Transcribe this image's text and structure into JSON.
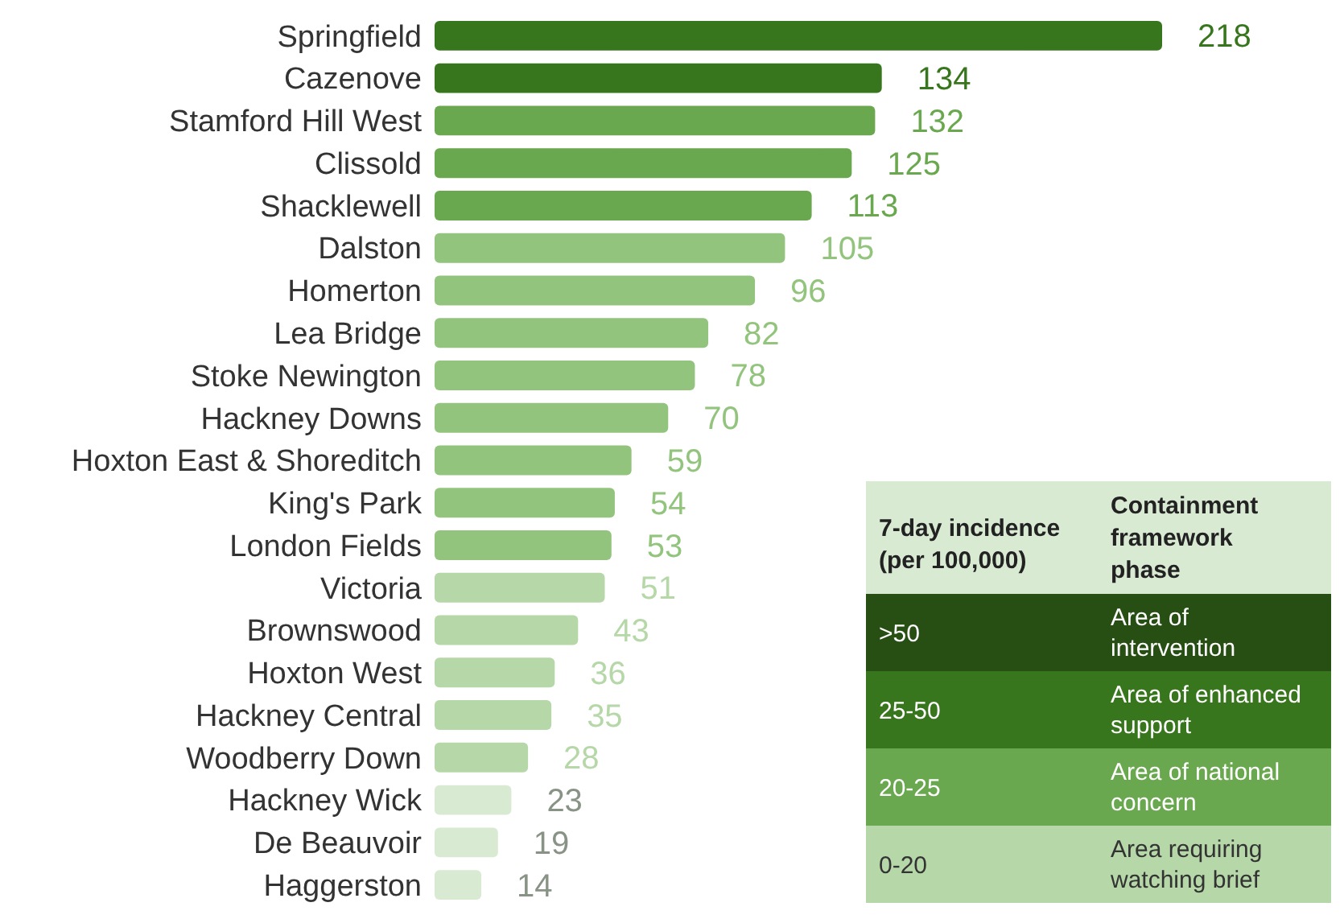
{
  "chart_data": [
    {
      "type": "bar",
      "orientation": "horizontal",
      "data_labels": true,
      "categories": [
        "Springfield",
        "Cazenove",
        "Stamford Hill West",
        "Clissold",
        "Shacklewell",
        "Dalston",
        "Homerton",
        "Lea Bridge",
        "Stoke Newington",
        "Hackney Downs",
        "Hoxton East & Shoreditch",
        "King's Park",
        "London Fields",
        "Victoria",
        "Brownswood",
        "Hoxton West",
        "Hackney Central",
        "Woodberry Down",
        "Hackney Wick",
        "De Beauvoir",
        "Haggerston"
      ],
      "values": [
        218,
        134,
        132,
        125,
        113,
        105,
        96,
        82,
        78,
        70,
        59,
        54,
        53,
        51,
        43,
        36,
        35,
        28,
        23,
        19,
        14
      ],
      "colors": [
        "#38761d",
        "#38761d",
        "#6aa84f",
        "#6aa84f",
        "#6aa84f",
        "#93c47d",
        "#93c47d",
        "#93c47d",
        "#93c47d",
        "#93c47d",
        "#93c47d",
        "#93c47d",
        "#93c47d",
        "#b6d7a8",
        "#b6d7a8",
        "#b6d7a8",
        "#b6d7a8",
        "#b6d7a8",
        "#d9ead3",
        "#d9ead3",
        "#d9ead3"
      ]
    },
    {
      "type": "other",
      "categories": [
        ">50",
        "25-50",
        "20-25",
        "0-20"
      ],
      "colors": [
        "#274e13",
        "#38761d",
        "#6aa84f",
        "#b6d7a8"
      ],
      "annotations": [
        "7-day incidence (per 100,000)",
        "Containment framework phase",
        "Area of intervention",
        "Area of enhanced support",
        "Area of national concern",
        "Area requiring watching brief"
      ]
    }
  ]
}
